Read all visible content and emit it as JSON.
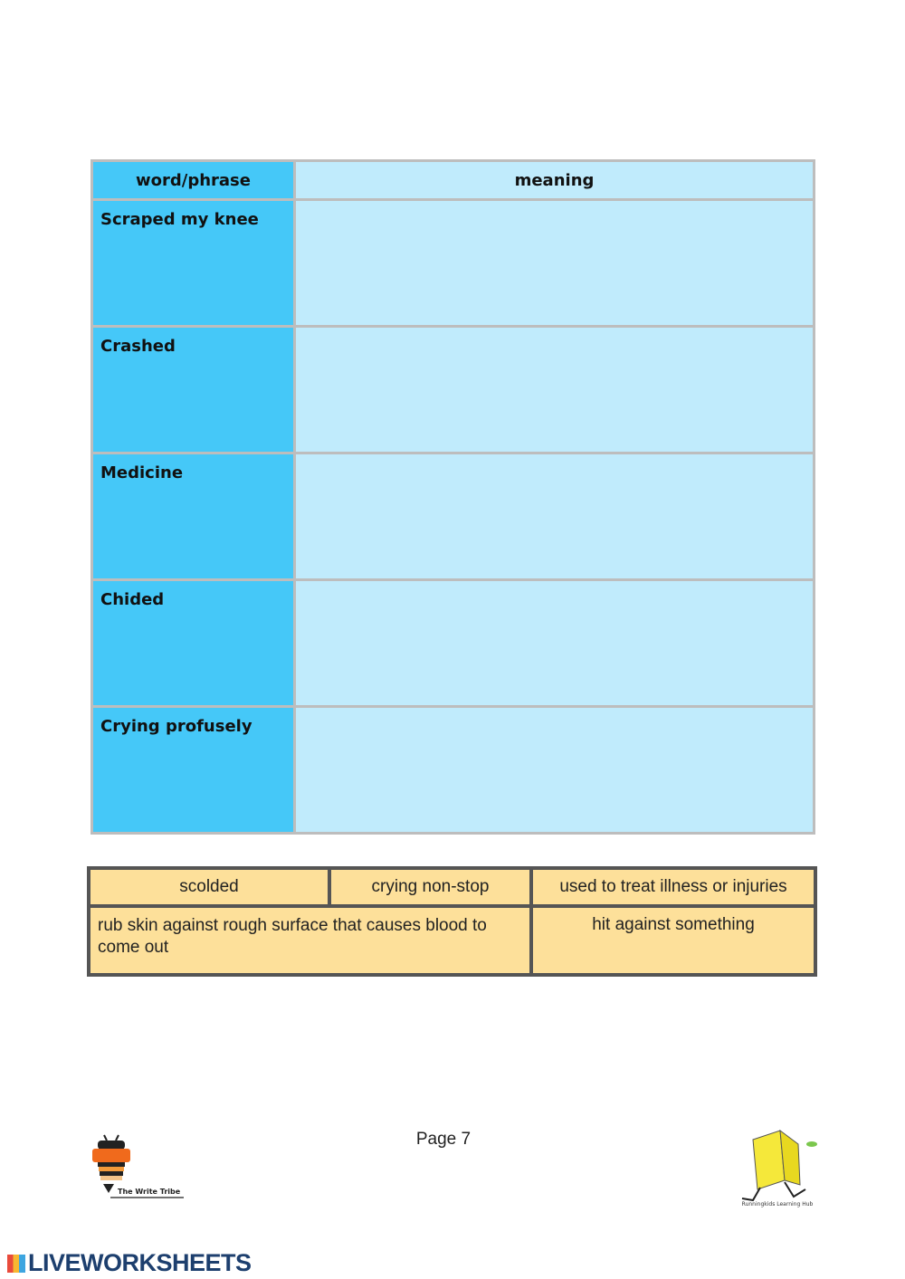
{
  "vocab_table": {
    "headers": [
      "word/phrase",
      "meaning"
    ],
    "rows": [
      {
        "word": "Scraped my knee",
        "meaning": ""
      },
      {
        "word": "Crashed",
        "meaning": ""
      },
      {
        "word": "Medicine",
        "meaning": ""
      },
      {
        "word": "Chided",
        "meaning": ""
      },
      {
        "word": "Crying profusely",
        "meaning": ""
      }
    ],
    "colors": {
      "word_col": "#45c8f8",
      "meaning_col": "#c0ebfc"
    }
  },
  "word_bank": {
    "row1": [
      "scolded",
      "crying non-stop",
      "used to treat illness or injuries"
    ],
    "row2": [
      "rub skin against rough surface that causes blood to come out",
      "hit against something"
    ],
    "color": "#fde09a"
  },
  "footer": {
    "page": "Page 7",
    "left_logo": "The Write Tribe",
    "right_logo": "Runningkids Learning Hub",
    "brand": "LIVEWORKSHEETS"
  }
}
